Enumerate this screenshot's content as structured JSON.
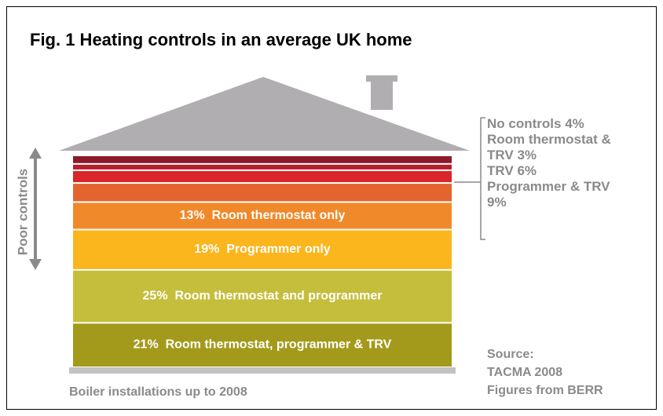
{
  "chart_data": {
    "type": "stacked-house",
    "title": "Fig. 1 Heating controls in an average UK home",
    "y_label": "Poor controls",
    "caption": "Boiler installations up to 2008",
    "source": [
      "Source:",
      "TACMA 2008",
      "Figures from BERR"
    ],
    "categories": [
      "No controls",
      "Room thermostat & TRV",
      "TRV",
      "Programmer & TRV",
      "Room thermostat only",
      "Programmer only",
      "Room thermostat and programmer",
      "Room thermostat, programmer & TRV"
    ],
    "values": [
      4,
      3,
      6,
      9,
      13,
      19,
      25,
      21
    ],
    "value_labels": [
      "4%",
      "3%",
      "6%",
      "9%",
      "13%",
      "19%",
      "25%",
      "21%"
    ],
    "colors": [
      "#8b1a2b",
      "#b51f2e",
      "#d8262a",
      "#e3642d",
      "#f0892a",
      "#fbb51d",
      "#c5be3c",
      "#a39a1c"
    ]
  }
}
